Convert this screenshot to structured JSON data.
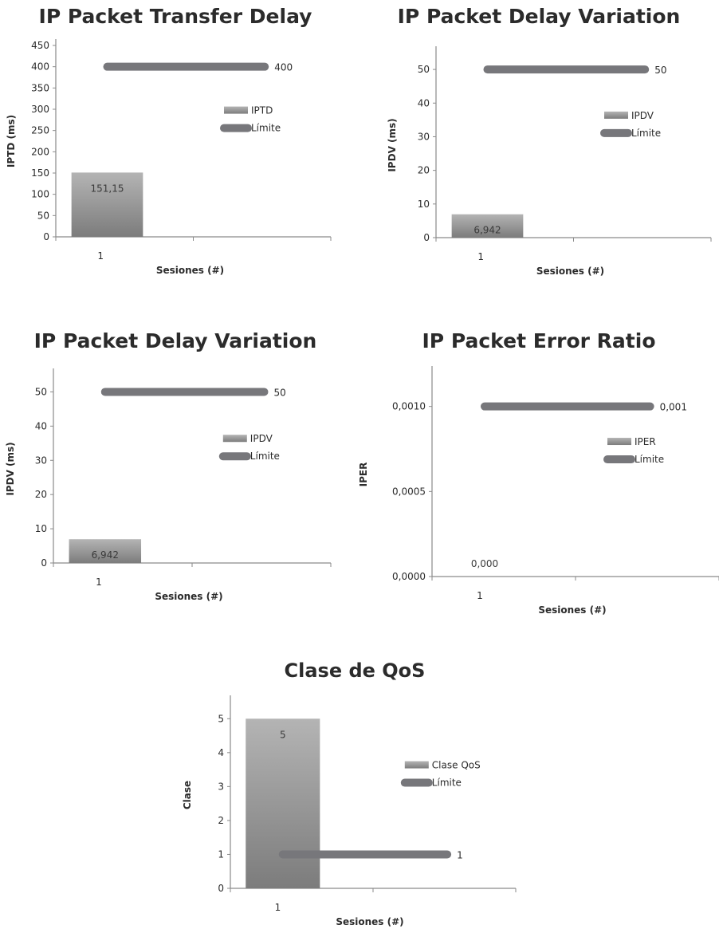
{
  "chart_data": [
    {
      "type": "bar",
      "title": "IP Packet Transfer Delay",
      "xlabel": "Sesiones (#)",
      "ylabel": "IPTD (ms)",
      "categories": [
        "1"
      ],
      "ylim": [
        0,
        450
      ],
      "yticks": [
        0,
        50,
        100,
        150,
        200,
        250,
        300,
        350,
        400,
        450
      ],
      "ytick_labels": [
        "0",
        "50",
        "100",
        "150",
        "200",
        "250",
        "300",
        "350",
        "400",
        "450"
      ],
      "series": [
        {
          "name": "IPTD",
          "kind": "bar",
          "values": [
            151.15
          ],
          "data_labels": [
            "151,15"
          ]
        },
        {
          "name": "Límite",
          "kind": "limit-line",
          "values": [
            400
          ],
          "data_labels": [
            "400"
          ]
        }
      ],
      "legend_position": "right",
      "grid": false
    },
    {
      "type": "bar",
      "title": "IP Packet Delay Variation",
      "xlabel": "Sesiones (#)",
      "ylabel": "IPDV (ms)",
      "categories": [
        "1"
      ],
      "ylim": [
        0,
        55
      ],
      "yticks": [
        0,
        10,
        20,
        30,
        40,
        50
      ],
      "ytick_labels": [
        "0",
        "10",
        "20",
        "30",
        "40",
        "50"
      ],
      "series": [
        {
          "name": "IPDV",
          "kind": "bar",
          "values": [
            6.942
          ],
          "data_labels": [
            "6,942"
          ]
        },
        {
          "name": "Límite",
          "kind": "limit-line",
          "values": [
            50
          ],
          "data_labels": [
            "50"
          ]
        }
      ],
      "legend_position": "right",
      "grid": false
    },
    {
      "type": "bar",
      "title": "IP Packet Delay Variation",
      "xlabel": "Sesiones (#)",
      "ylabel": "IPDV (ms)",
      "categories": [
        "1"
      ],
      "ylim": [
        0,
        55
      ],
      "yticks": [
        0,
        10,
        20,
        30,
        40,
        50
      ],
      "ytick_labels": [
        "0",
        "10",
        "20",
        "30",
        "40",
        "50"
      ],
      "series": [
        {
          "name": "IPDV",
          "kind": "bar",
          "values": [
            6.942
          ],
          "data_labels": [
            "6,942"
          ]
        },
        {
          "name": "Límite",
          "kind": "limit-line",
          "values": [
            50
          ],
          "data_labels": [
            "50"
          ]
        }
      ],
      "legend_position": "right",
      "grid": false
    },
    {
      "type": "bar",
      "title": "IP Packet Error Ratio",
      "xlabel": "Sesiones (#)",
      "ylabel": "IPER",
      "categories": [
        "1"
      ],
      "ylim": [
        0,
        0.0012
      ],
      "yticks": [
        0,
        0.0005,
        0.001
      ],
      "ytick_labels": [
        "0,0000",
        "0,0005",
        "0,0010"
      ],
      "series": [
        {
          "name": "IPER",
          "kind": "bar",
          "values": [
            0
          ],
          "data_labels": [
            "0,000"
          ]
        },
        {
          "name": "Límite",
          "kind": "limit-line",
          "values": [
            0.001
          ],
          "data_labels": [
            "0,001"
          ]
        }
      ],
      "legend_position": "right",
      "grid": false
    },
    {
      "type": "bar",
      "title": "Clase de QoS",
      "xlabel": "Sesiones (#)",
      "ylabel": "Clase",
      "categories": [
        "1"
      ],
      "ylim": [
        0,
        5.5
      ],
      "yticks": [
        0,
        1,
        2,
        3,
        4,
        5
      ],
      "ytick_labels": [
        "0",
        "1",
        "2",
        "3",
        "4",
        "5"
      ],
      "series": [
        {
          "name": "Clase QoS",
          "kind": "bar",
          "values": [
            5
          ],
          "data_labels": [
            "5"
          ]
        },
        {
          "name": "Límite",
          "kind": "limit-line",
          "values": [
            1
          ],
          "data_labels": [
            "1"
          ]
        }
      ],
      "legend_position": "right",
      "grid": false
    }
  ],
  "colors": {
    "bar_top": "#b4b4b4",
    "bar_bottom": "#7c7c7c",
    "limit_line": "#77777b",
    "axis": "#8a8a8a",
    "text": "#2b2b2b"
  }
}
